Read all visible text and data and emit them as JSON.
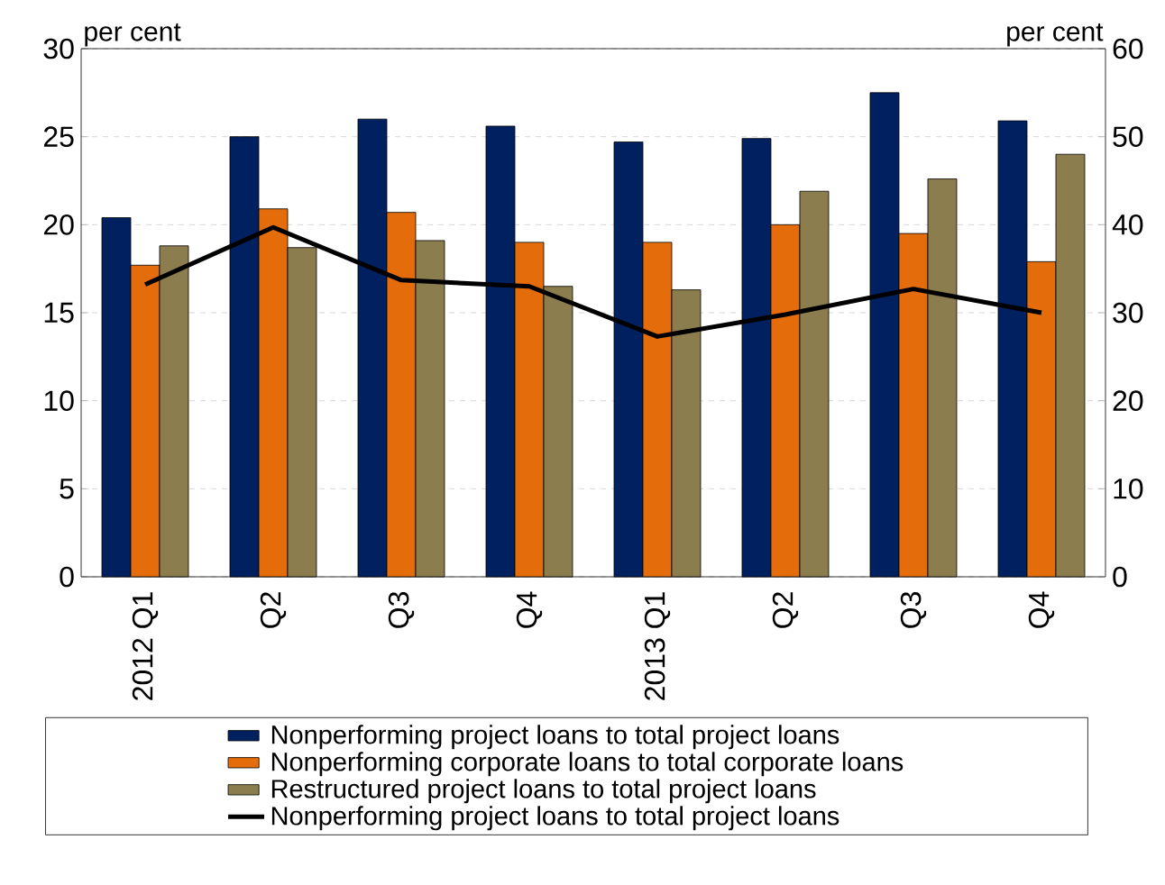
{
  "chart_data": {
    "type": "bar",
    "categories": [
      "2012 Q1",
      "Q2",
      "Q3",
      "Q4",
      "2013 Q1",
      "Q2",
      "Q3",
      "Q4"
    ],
    "series": [
      {
        "name": "Nonperforming project loans to total project loans",
        "color": "#002060",
        "values": [
          20.4,
          25.0,
          26.0,
          25.6,
          24.7,
          24.9,
          27.5,
          25.9
        ]
      },
      {
        "name": "Nonperforming corporate loans to total corporate loans",
        "color": "#e46c0a",
        "values": [
          17.7,
          20.9,
          20.7,
          19.0,
          19.0,
          20.0,
          19.5,
          17.9
        ]
      },
      {
        "name": "Restructured project loans to total project loans",
        "color": "#8b7d4e",
        "values": [
          18.8,
          18.7,
          19.1,
          16.5,
          16.3,
          21.9,
          22.6,
          24.0
        ]
      },
      {
        "name": "Nonperforming project loans to total project loans",
        "color": "#000000",
        "type": "line",
        "axis": "y2",
        "values": [
          33.2,
          39.7,
          33.7,
          33.0,
          27.3,
          29.8,
          32.7,
          30.0
        ]
      }
    ],
    "ylabel": "per cent",
    "y2label": "per cent",
    "ylim": [
      0,
      30
    ],
    "yticks": [
      0,
      5,
      10,
      15,
      20,
      25,
      30
    ],
    "y2lim": [
      0,
      60
    ],
    "y2ticks": [
      0,
      10,
      20,
      30,
      40,
      50,
      60
    ],
    "grid": "y",
    "legend": "bottom"
  }
}
